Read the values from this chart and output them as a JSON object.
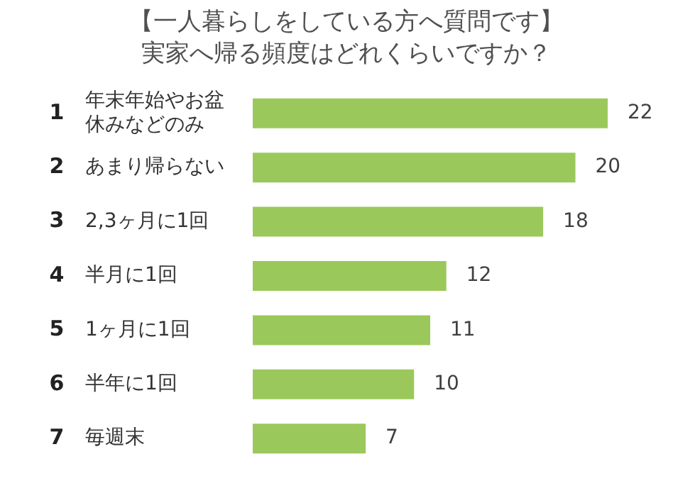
{
  "chart_data": {
    "type": "bar",
    "orientation": "horizontal",
    "title": "【一人暮らしをしている方へ質問です】",
    "subtitle": "実家へ帰る頻度はどれくらいですか？",
    "categories": [
      "年末年始やお盆休みなどのみ",
      "あまり帰らない",
      "2,3ヶ月に1回",
      "半月に1回",
      "1ヶ月に1回",
      "半年に1回",
      "毎週末"
    ],
    "values": [
      22,
      20,
      18,
      12,
      11,
      10,
      7
    ],
    "color": "#9bc85a",
    "data_labels": true,
    "legend": false,
    "annotations": [
      "1",
      "2",
      "3",
      "4",
      "5",
      "6",
      "7"
    ]
  }
}
